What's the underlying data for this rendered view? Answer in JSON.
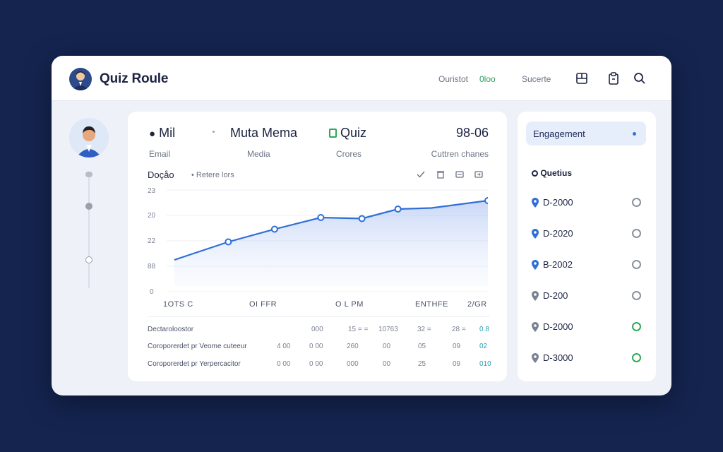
{
  "app": {
    "title": "Quiz Roule"
  },
  "topnav": {
    "links": [
      "Ouristot",
      "0loo",
      "Sucerte"
    ],
    "icons": [
      "layout-icon",
      "clipboard-icon",
      "search-icon"
    ]
  },
  "stats": [
    {
      "value": "Mil",
      "label": "Email"
    },
    {
      "value": "Muta Mema",
      "label": "Media"
    },
    {
      "value": "Quiz",
      "label": "Crores"
    },
    {
      "value": "98-06",
      "label": "Cuttren chanes"
    }
  ],
  "chart_header": {
    "title": "Doçåo",
    "legend": "Retere lors"
  },
  "chart_data": {
    "type": "area",
    "ylabels": [
      "23",
      "20",
      "22",
      "88",
      "0"
    ],
    "xlabels": [
      "1OTS C",
      "OI FFR",
      "O L PM",
      "ENTHFE",
      "2/GR"
    ],
    "points": [
      [
        0.03,
        0.7
      ],
      [
        0.24,
        0.53
      ],
      [
        0.42,
        0.41
      ],
      [
        0.6,
        0.3
      ],
      [
        0.76,
        0.31
      ],
      [
        0.9,
        0.22
      ],
      [
        1.03,
        0.21
      ],
      [
        1.25,
        0.14
      ]
    ]
  },
  "table": {
    "header": {
      "label": "Dectaroloostor",
      "cells": [
        "000",
        "15 = =",
        "10763",
        "32 =",
        "28 =",
        "0.8"
      ]
    },
    "rows": [
      {
        "label": "Coroporerdet pr Veome cuteeur",
        "cells": [
          "4 00",
          "0 00",
          "260",
          "00",
          "05",
          "09",
          "02"
        ]
      },
      {
        "label": "Coroporerdet pr Yerpercacitor",
        "cells": [
          "0 00",
          "0 00",
          "000",
          "00",
          "25",
          "09",
          "010"
        ]
      }
    ]
  },
  "right_panel": {
    "button": "Engagement",
    "heading": "Quetius",
    "items": [
      {
        "label": "D-2000",
        "pin": "blue",
        "radio": "gray"
      },
      {
        "label": "D-2020",
        "pin": "blue",
        "radio": "gray"
      },
      {
        "label": "B-2002",
        "pin": "blue",
        "radio": "gray"
      },
      {
        "label": "D-200",
        "pin": "gray",
        "radio": "gray"
      },
      {
        "label": "D-2000",
        "pin": "gray",
        "radio": "green"
      },
      {
        "label": "D-3000",
        "pin": "gray",
        "radio": "green"
      }
    ]
  },
  "colors": {
    "accent": "#2f6fd6",
    "background": "#14244f",
    "green": "#2caa55"
  }
}
